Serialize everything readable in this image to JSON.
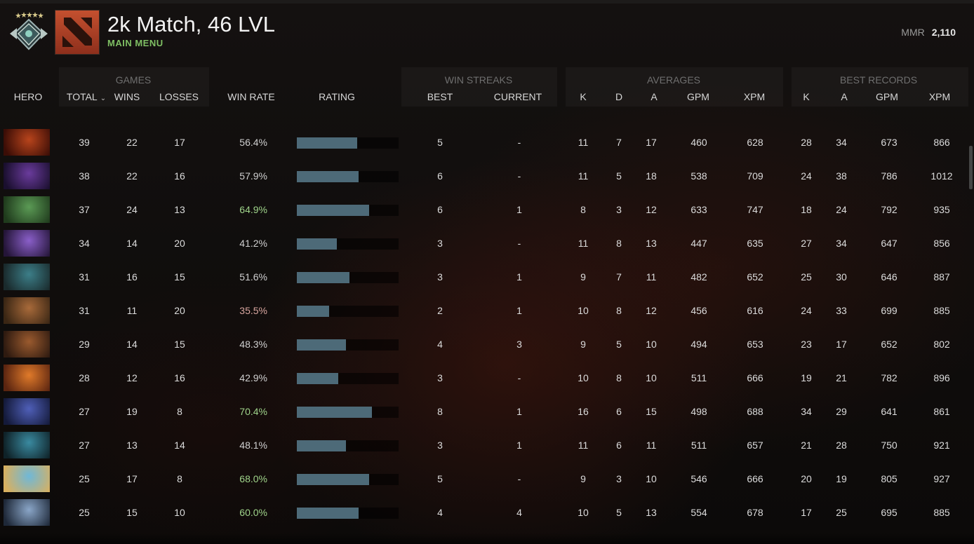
{
  "header": {
    "title": "2k Match, 46 LVL",
    "subtitle": "MAIN MENU",
    "mmr_label": "MMR",
    "mmr_value": "2,110"
  },
  "groups": {
    "games": "GAMES",
    "win_streaks": "WIN STREAKS",
    "averages": "AVERAGES",
    "best_records": "BEST RECORDS"
  },
  "columns": {
    "hero": "HERO",
    "total": "TOTAL",
    "wins": "WINS",
    "losses": "LOSSES",
    "win_rate": "WIN RATE",
    "rating": "RATING",
    "best": "BEST",
    "current": "CURRENT",
    "avg_k": "K",
    "avg_d": "D",
    "avg_a": "A",
    "avg_gpm": "GPM",
    "avg_xpm": "XPM",
    "best_k": "K",
    "best_a": "A",
    "best_gpm": "GPM",
    "best_xpm": "XPM"
  },
  "colors": {
    "win_rate_high": "#9fd38a",
    "win_rate_mid": "#cfcfcf",
    "win_rate_low": "#d9a6a0",
    "bar_fill": "#4d6a78"
  },
  "rows": [
    {
      "hero_icon": "hero-doom-icon",
      "total": "39",
      "wins": "22",
      "losses": "17",
      "win_rate": "56.4%",
      "rating": 0.59,
      "best": "5",
      "current": "-",
      "k": "11",
      "d": "7",
      "a": "17",
      "gpm": "460",
      "xpm": "628",
      "bk": "28",
      "ba": "34",
      "bgpm": "673",
      "bxpm": "866",
      "tone": "mid",
      "c1": "#b8441c",
      "c2": "#3b0d06"
    },
    {
      "hero_icon": "hero-faceless-void-icon",
      "total": "38",
      "wins": "22",
      "losses": "16",
      "win_rate": "57.9%",
      "rating": 0.61,
      "best": "6",
      "current": "-",
      "k": "11",
      "d": "5",
      "a": "18",
      "gpm": "538",
      "xpm": "709",
      "bk": "24",
      "ba": "38",
      "bgpm": "786",
      "bxpm": "1012",
      "tone": "mid",
      "c1": "#6a3b9c",
      "c2": "#1a0f2e"
    },
    {
      "hero_icon": "hero-venomancer-icon",
      "total": "37",
      "wins": "24",
      "losses": "13",
      "win_rate": "64.9%",
      "rating": 0.71,
      "best": "6",
      "current": "1",
      "k": "8",
      "d": "3",
      "a": "12",
      "gpm": "633",
      "xpm": "747",
      "bk": "18",
      "ba": "24",
      "bgpm": "792",
      "bxpm": "935",
      "tone": "high",
      "c1": "#5b9a55",
      "c2": "#1f3a1c"
    },
    {
      "hero_icon": "hero-void-spirit-icon",
      "total": "34",
      "wins": "14",
      "losses": "20",
      "win_rate": "41.2%",
      "rating": 0.39,
      "best": "3",
      "current": "-",
      "k": "11",
      "d": "8",
      "a": "13",
      "gpm": "447",
      "xpm": "635",
      "bk": "27",
      "ba": "34",
      "bgpm": "647",
      "bxpm": "856",
      "tone": "mid",
      "c1": "#8a5fc9",
      "c2": "#241538"
    },
    {
      "hero_icon": "hero-tinker-icon",
      "total": "31",
      "wins": "16",
      "losses": "15",
      "win_rate": "51.6%",
      "rating": 0.52,
      "best": "3",
      "current": "1",
      "k": "9",
      "d": "7",
      "a": "11",
      "gpm": "482",
      "xpm": "652",
      "bk": "25",
      "ba": "30",
      "bgpm": "646",
      "bxpm": "887",
      "tone": "mid",
      "c1": "#3c7e88",
      "c2": "#1a2a2c"
    },
    {
      "hero_icon": "hero-monkey-king-icon",
      "total": "31",
      "wins": "11",
      "losses": "20",
      "win_rate": "35.5%",
      "rating": 0.32,
      "best": "2",
      "current": "1",
      "k": "10",
      "d": "8",
      "a": "12",
      "gpm": "456",
      "xpm": "616",
      "bk": "24",
      "ba": "33",
      "bgpm": "699",
      "bxpm": "885",
      "tone": "low",
      "c1": "#a86a3a",
      "c2": "#3a2614"
    },
    {
      "hero_icon": "hero-dawnbreaker-icon",
      "total": "29",
      "wins": "14",
      "losses": "15",
      "win_rate": "48.3%",
      "rating": 0.48,
      "best": "4",
      "current": "3",
      "k": "9",
      "d": "5",
      "a": "10",
      "gpm": "494",
      "xpm": "653",
      "bk": "23",
      "ba": "17",
      "bgpm": "652",
      "bxpm": "802",
      "tone": "mid",
      "c1": "#9a5a2e",
      "c2": "#2e1a10"
    },
    {
      "hero_icon": "hero-lina-icon",
      "total": "28",
      "wins": "12",
      "losses": "16",
      "win_rate": "42.9%",
      "rating": 0.41,
      "best": "3",
      "current": "-",
      "k": "10",
      "d": "8",
      "a": "10",
      "gpm": "511",
      "xpm": "666",
      "bk": "19",
      "ba": "21",
      "bgpm": "782",
      "bxpm": "896",
      "tone": "mid",
      "c1": "#e07a2a",
      "c2": "#5a2410"
    },
    {
      "hero_icon": "hero-riki-icon",
      "total": "27",
      "wins": "19",
      "losses": "8",
      "win_rate": "70.4%",
      "rating": 0.74,
      "best": "8",
      "current": "1",
      "k": "16",
      "d": "6",
      "a": "15",
      "gpm": "498",
      "xpm": "688",
      "bk": "34",
      "ba": "29",
      "bgpm": "641",
      "bxpm": "861",
      "tone": "high",
      "c1": "#4f5fb8",
      "c2": "#141a3a"
    },
    {
      "hero_icon": "hero-phantom-assassin-icon",
      "total": "27",
      "wins": "13",
      "losses": "14",
      "win_rate": "48.1%",
      "rating": 0.48,
      "best": "3",
      "current": "1",
      "k": "11",
      "d": "6",
      "a": "11",
      "gpm": "511",
      "xpm": "657",
      "bk": "21",
      "ba": "28",
      "bgpm": "750",
      "bxpm": "921",
      "tone": "mid",
      "c1": "#3a8aa0",
      "c2": "#0f2228"
    },
    {
      "hero_icon": "hero-omniknight-icon",
      "total": "25",
      "wins": "17",
      "losses": "8",
      "win_rate": "68.0%",
      "rating": 0.71,
      "best": "5",
      "current": "-",
      "k": "9",
      "d": "3",
      "a": "10",
      "gpm": "546",
      "xpm": "666",
      "bk": "20",
      "ba": "19",
      "bgpm": "805",
      "bxpm": "927",
      "tone": "high",
      "c1": "#6fb8d8",
      "c2": "#d8b060"
    },
    {
      "hero_icon": "hero-drow-ranger-icon",
      "total": "25",
      "wins": "15",
      "losses": "10",
      "win_rate": "60.0%",
      "rating": 0.61,
      "best": "4",
      "current": "4",
      "k": "10",
      "d": "5",
      "a": "13",
      "gpm": "554",
      "xpm": "678",
      "bk": "17",
      "ba": "25",
      "bgpm": "695",
      "bxpm": "885",
      "tone": "high",
      "c1": "#8aa6c8",
      "c2": "#1e2838"
    }
  ]
}
